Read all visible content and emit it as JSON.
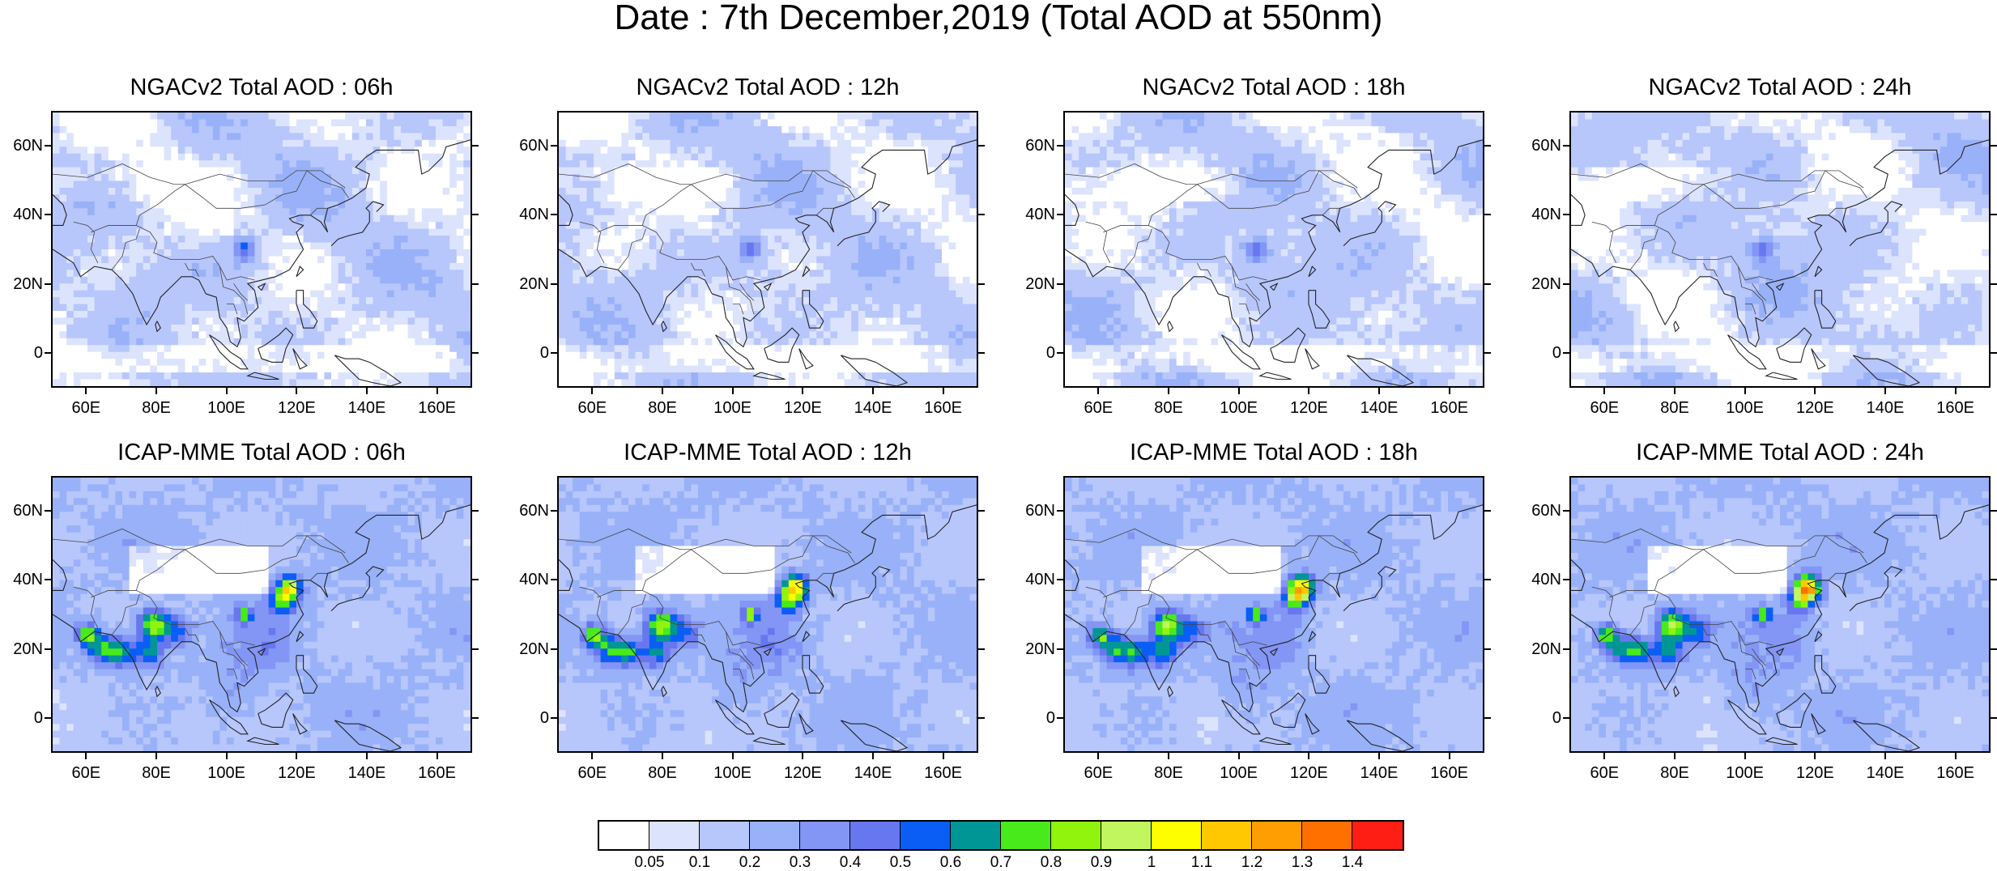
{
  "title": "Date : 7th December,2019 (Total AOD at 550nm)",
  "panels": [
    {
      "title": "NGACv2 Total AOD : 06h",
      "model": "ngac"
    },
    {
      "title": "NGACv2 Total AOD : 12h",
      "model": "ngac"
    },
    {
      "title": "NGACv2 Total AOD : 18h",
      "model": "ngac"
    },
    {
      "title": "NGACv2 Total AOD : 24h",
      "model": "ngac"
    },
    {
      "title": "ICAP-MME Total AOD : 06h",
      "model": "icap"
    },
    {
      "title": "ICAP-MME Total AOD : 12h",
      "model": "icap"
    },
    {
      "title": "ICAP-MME Total AOD : 18h",
      "model": "icap"
    },
    {
      "title": "ICAP-MME Total AOD : 24h",
      "model": "icap"
    }
  ],
  "axes": {
    "lat_ticks": [
      "60N",
      "40N",
      "20N",
      "0"
    ],
    "lon_ticks": [
      "60E",
      "80E",
      "100E",
      "120E",
      "140E",
      "160E"
    ]
  },
  "colorbar": {
    "labels": [
      "0.05",
      "0.1",
      "0.2",
      "0.3",
      "0.4",
      "0.5",
      "0.6",
      "0.7",
      "0.8",
      "0.9",
      "1",
      "1.1",
      "1.2",
      "1.3",
      "1.4"
    ],
    "colors": [
      "#ffffff",
      "#dce3fd",
      "#b7c6fb",
      "#98b1f8",
      "#8395f5",
      "#6777ef",
      "#0a5ef5",
      "#009696",
      "#48ea1c",
      "#91f40c",
      "#c2f65e",
      "#fffe00",
      "#ffc800",
      "#ff9e00",
      "#ff7000",
      "#ff1e14"
    ]
  }
}
